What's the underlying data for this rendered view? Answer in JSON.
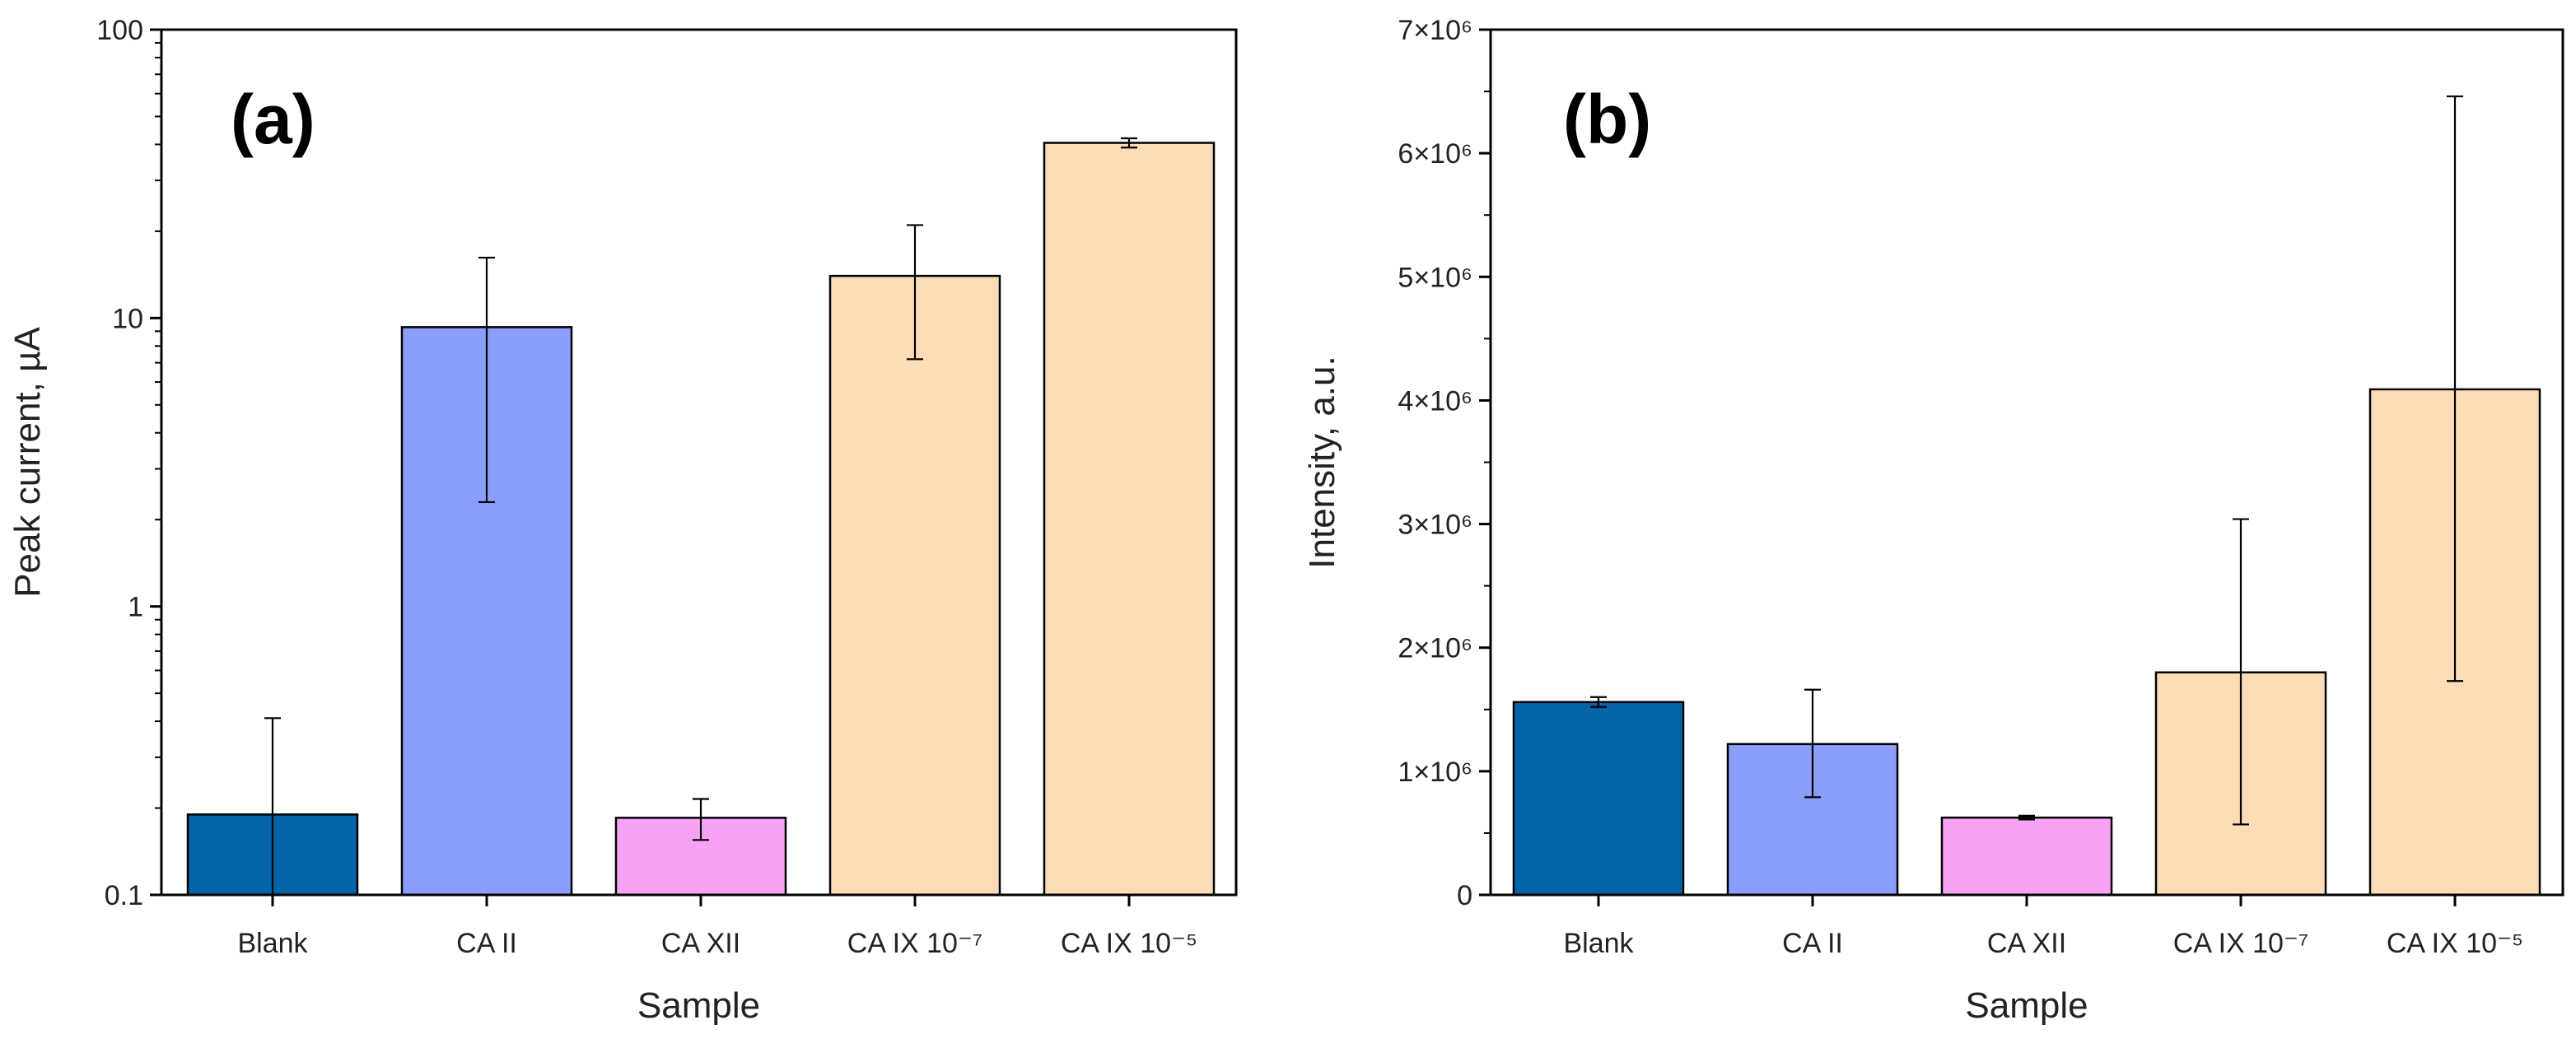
{
  "chart_data": [
    {
      "type": "bar",
      "panel_label": "(a)",
      "categories": [
        "Blank",
        "CA II",
        "CA XII",
        "CA IX 10⁻⁷",
        "CA IX 10⁻⁵"
      ],
      "values": [
        0.19,
        9.3,
        0.185,
        14,
        40.5
      ],
      "errors": [
        {
          "low": 0.1,
          "high": 0.41
        },
        {
          "low": 2.3,
          "high": 16.2
        },
        {
          "low": 0.155,
          "high": 0.215
        },
        {
          "low": 7.2,
          "high": 21
        },
        {
          "low": 39,
          "high": 42
        }
      ],
      "colors": [
        "#0563a8",
        "#8c9efc",
        "#f7a3f5",
        "#fcdcb6",
        "#fcdcb6"
      ],
      "xlabel": "Sample",
      "ylabel": "Peak current, µA",
      "yscale": "log",
      "ylim": [
        0.1,
        100
      ],
      "yticks": [
        0.1,
        1,
        10,
        100
      ],
      "ytick_labels": [
        "0.1",
        "1",
        "10",
        "100"
      ]
    },
    {
      "type": "bar",
      "panel_label": "(b)",
      "categories": [
        "Blank",
        "CA II",
        "CA XII",
        "CA IX 10⁻⁷",
        "CA IX 10⁻⁵"
      ],
      "values": [
        1560000,
        1220000,
        625000,
        1800000,
        4090000
      ],
      "errors": [
        {
          "low": 1520000,
          "high": 1600000
        },
        {
          "low": 790000,
          "high": 1660000
        },
        {
          "low": 610000,
          "high": 640000
        },
        {
          "low": 570000,
          "high": 3040000
        },
        {
          "low": 1730000,
          "high": 6460000
        }
      ],
      "colors": [
        "#0563a8",
        "#8c9efc",
        "#f7a3f5",
        "#fcdcb6",
        "#fcdcb6"
      ],
      "xlabel": "Sample",
      "ylabel": "Intensity, a.u.",
      "yscale": "linear",
      "ylim": [
        0,
        7000000
      ],
      "yticks": [
        0,
        1000000,
        2000000,
        3000000,
        4000000,
        5000000,
        6000000,
        7000000
      ],
      "ytick_labels": [
        "0",
        "1×10⁶",
        "2×10⁶",
        "3×10⁶",
        "4×10⁶",
        "5×10⁶",
        "6×10⁶",
        "7×10⁶"
      ]
    }
  ]
}
